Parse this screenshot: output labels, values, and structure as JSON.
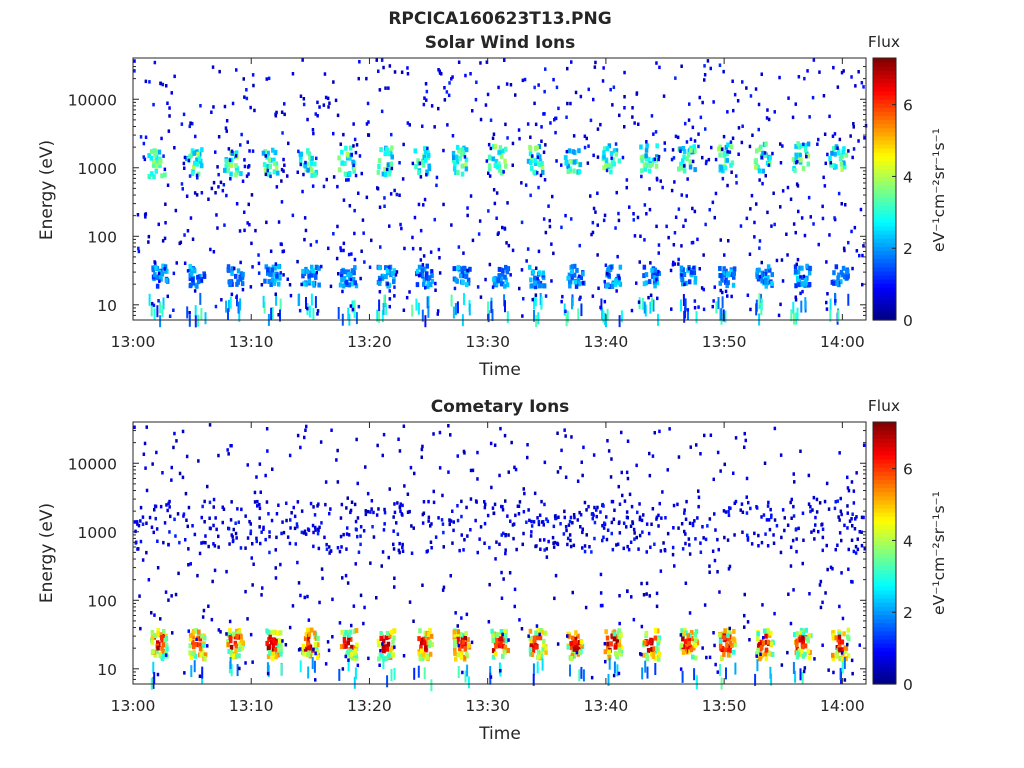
{
  "page": {
    "title": "RPCICA160623T13.PNG"
  },
  "chart_data": [
    {
      "type": "heatmap",
      "title": "Solar Wind Ions",
      "xlabel": "Time",
      "ylabel": "Energy (eV)",
      "y_scale": "log",
      "ylim": [
        6,
        40000
      ],
      "xlim_minutes": [
        0,
        62
      ],
      "x_ticks": [
        "13:00",
        "13:10",
        "13:20",
        "13:30",
        "13:40",
        "13:50",
        "14:00"
      ],
      "x_tick_minutes": [
        0,
        10,
        20,
        30,
        40,
        50,
        60
      ],
      "y_ticks": [
        "10",
        "100",
        "1000",
        "10000"
      ],
      "y_tick_values": [
        10,
        100,
        1000,
        10000
      ],
      "colorbar": {
        "title": "Flux",
        "label": "eV⁻¹cm⁻²sr⁻¹s⁻¹",
        "range": [
          0,
          7.3
        ],
        "ticks": [
          "0",
          "2",
          "4",
          "6"
        ],
        "tick_values": [
          0,
          2,
          4,
          6
        ],
        "colormap": "jet"
      },
      "features": [
        {
          "name": "Solar wind beam",
          "energy_eV_approx": [
            800,
            2000
          ],
          "flux_approx": 3.5,
          "period_minutes": 3.2,
          "start_minute": 1.8,
          "energy_drift_up": true
        },
        {
          "name": "Low-energy band",
          "energy_eV_approx": [
            20,
            40
          ],
          "flux_approx": 2.2,
          "period_minutes": 3.2,
          "start_minute": 2.0
        },
        {
          "name": "Background noise",
          "energy_eV_approx": [
            7,
            40000
          ],
          "flux_approx": 1.0
        }
      ]
    },
    {
      "type": "heatmap",
      "title": "Cometary Ions",
      "xlabel": "Time",
      "ylabel": "Energy (eV)",
      "y_scale": "log",
      "ylim": [
        6,
        40000
      ],
      "xlim_minutes": [
        0,
        62
      ],
      "x_ticks": [
        "13:00",
        "13:10",
        "13:20",
        "13:30",
        "13:40",
        "13:50",
        "14:00"
      ],
      "x_tick_minutes": [
        0,
        10,
        20,
        30,
        40,
        50,
        60
      ],
      "y_ticks": [
        "10",
        "100",
        "1000",
        "10000"
      ],
      "y_tick_values": [
        10,
        100,
        1000,
        10000
      ],
      "colorbar": {
        "title": "Flux",
        "label": "eV⁻¹cm⁻²sr⁻¹s⁻¹",
        "range": [
          0,
          7.3
        ],
        "ticks": [
          "0",
          "2",
          "4",
          "6"
        ],
        "tick_values": [
          0,
          2,
          4,
          6
        ],
        "colormap": "jet"
      },
      "features": [
        {
          "name": "Cometary ion bursts",
          "energy_eV_approx": [
            15,
            40
          ],
          "flux_approx": 6.5,
          "period_minutes": 3.2,
          "start_minute": 2.0
        },
        {
          "name": "Sparse high-energy counts",
          "energy_eV_approx": [
            500,
            3000
          ],
          "flux_approx": 1.0
        },
        {
          "name": "Background noise",
          "energy_eV_approx": [
            7,
            40000
          ],
          "flux_approx": 0.8
        }
      ]
    }
  ]
}
